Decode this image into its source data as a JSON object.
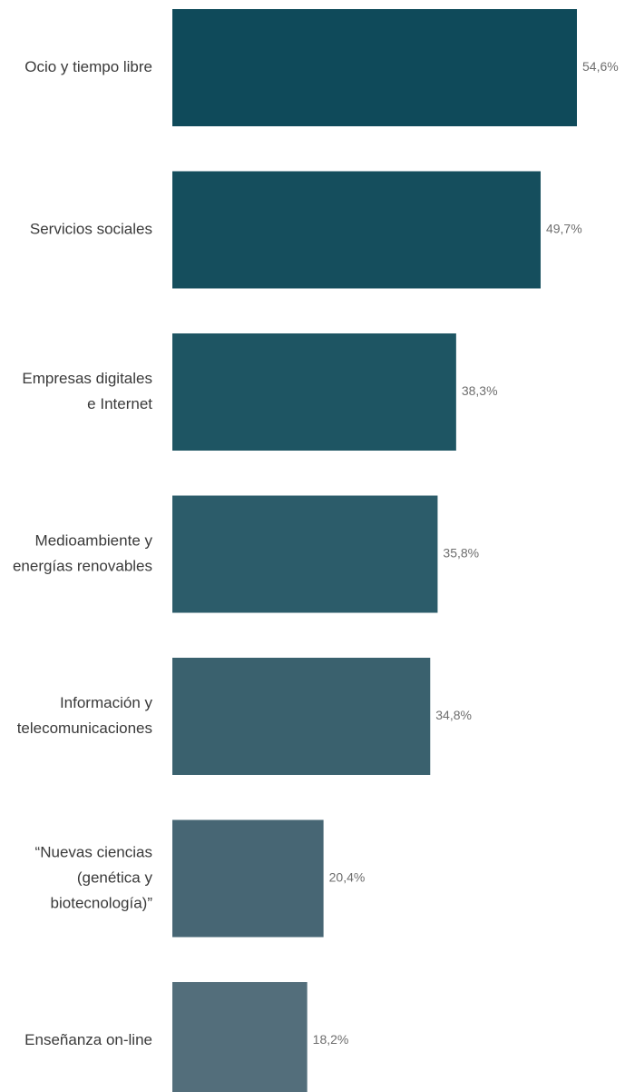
{
  "chart_data": {
    "type": "bar",
    "orientation": "horizontal",
    "categories": [
      [
        "Ocio y tiempo libre"
      ],
      [
        "Servicios sociales"
      ],
      [
        "Empresas digitales",
        "e Internet"
      ],
      [
        "Medioambiente y",
        "energías renovables"
      ],
      [
        "Información y",
        "telecomunicaciones"
      ],
      [
        "“Nuevas ciencias",
        "(genética y",
        "biotecnología)”"
      ],
      [
        "Enseñanza on-line"
      ]
    ],
    "values": [
      54.6,
      49.7,
      38.3,
      35.8,
      34.8,
      20.4,
      18.2
    ],
    "value_labels": [
      "54,6%",
      "49,7%",
      "38,3%",
      "35,8%",
      "34,8%",
      "20,4%",
      "18,2%"
    ],
    "xlim": [
      0,
      54.6
    ],
    "bar_colors": [
      "#0f4a5a",
      "#154e5d",
      "#1e5563",
      "#2c5c6a",
      "#3a616e",
      "#476674",
      "#536e7b"
    ],
    "grid": false,
    "legend": "none",
    "title": "",
    "xlabel": "",
    "ylabel": ""
  }
}
